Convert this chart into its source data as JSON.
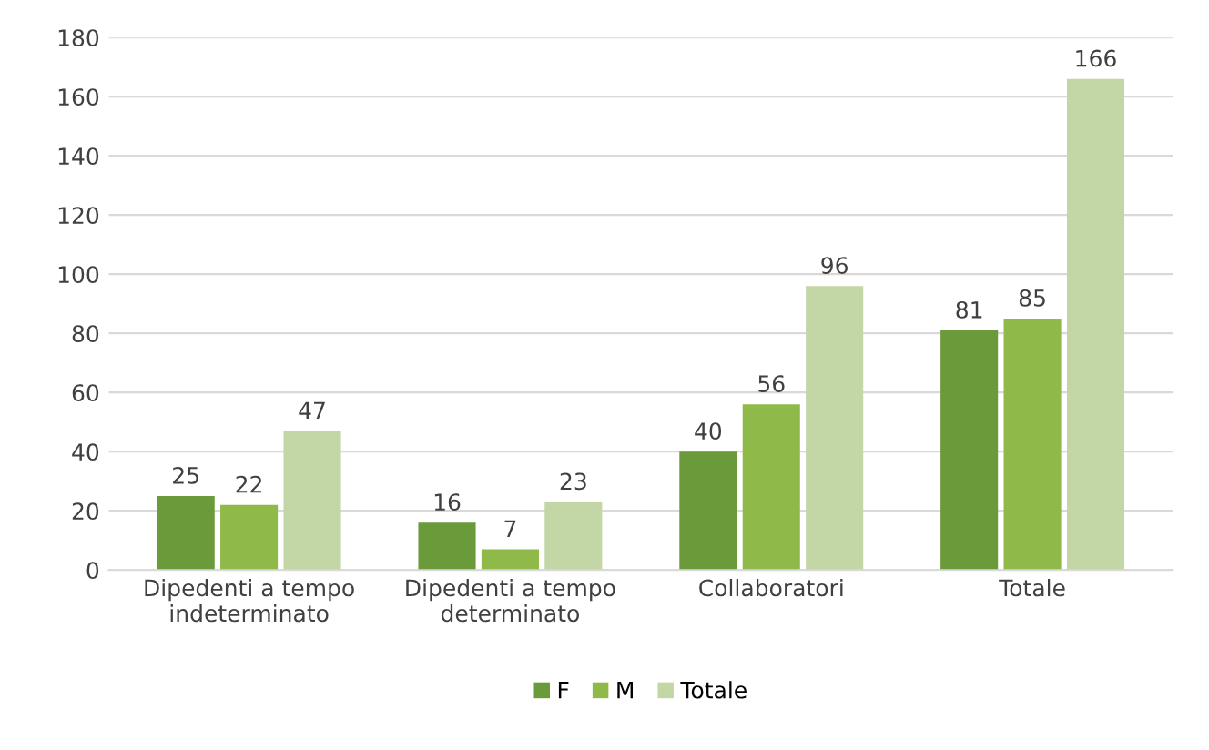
{
  "chart_data": {
    "type": "bar",
    "categories": [
      "Dipedenti a tempo\nindeterminato",
      "Dipedenti a tempo\ndeterminato",
      "Collaboratori",
      "Totale"
    ],
    "series": [
      {
        "name": "F",
        "color": "#6b9a3a",
        "values": [
          25,
          16,
          40,
          81
        ]
      },
      {
        "name": "M",
        "color": "#8fba4a",
        "values": [
          22,
          7,
          56,
          85
        ]
      },
      {
        "name": "Totale",
        "color": "#c3d6a6",
        "values": [
          47,
          23,
          96,
          166
        ]
      }
    ],
    "ylim": [
      0,
      180
    ],
    "yticks": [
      0,
      20,
      40,
      60,
      80,
      100,
      120,
      140,
      160,
      180
    ],
    "grid": "y",
    "legend": "bottom",
    "data_labels": true
  }
}
